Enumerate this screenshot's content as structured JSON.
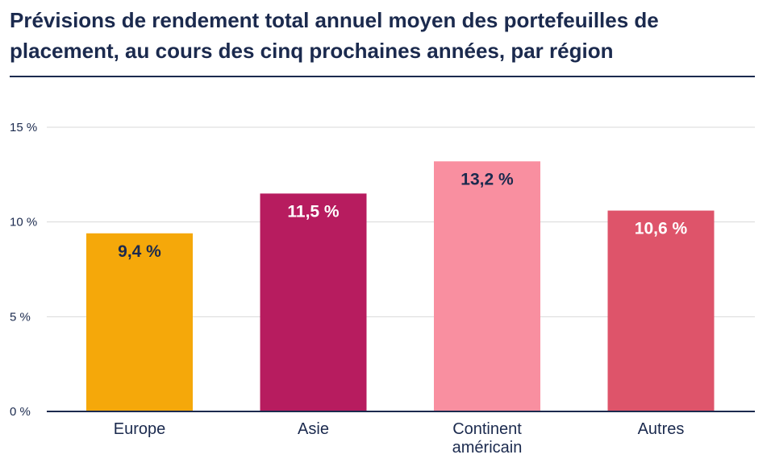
{
  "chart_data": {
    "type": "bar",
    "title": "Prévisions de rendement total annuel moyen des portefeuilles de placement, au cours des cinq prochaines années, par région",
    "categories": [
      "Europe",
      "Asie",
      "Continent américain",
      "Autres"
    ],
    "category_lines": [
      [
        "Europe"
      ],
      [
        "Asie"
      ],
      [
        "Continent",
        "américain"
      ],
      [
        "Autres"
      ]
    ],
    "values": [
      9.4,
      11.5,
      13.2,
      10.6
    ],
    "data_labels": [
      "9,4 %",
      "11,5 %",
      "13,2 %",
      "10,6 %"
    ],
    "bar_colors": [
      "#f5a80a",
      "#b71c5f",
      "#f98fa0",
      "#de546a"
    ],
    "data_label_colors": [
      "#1b2a4e",
      "#ffffff",
      "#1b2a4e",
      "#ffffff"
    ],
    "ylim": [
      0,
      15
    ],
    "yticks": [
      0,
      5,
      10,
      15
    ],
    "ytick_labels": [
      "0 %",
      "5 %",
      "10 %",
      "15 %"
    ],
    "xlabel": "",
    "ylabel": "",
    "grid": true,
    "legend": "none"
  },
  "colors": {
    "text": "#1b2a4e",
    "grid": "#d9d9d9",
    "axis": "#1b2a4e"
  }
}
